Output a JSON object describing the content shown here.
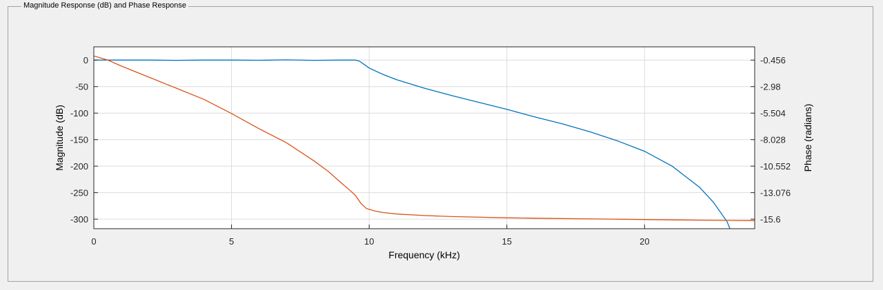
{
  "panel": {
    "title": "Magnitude Response (dB) and Phase Response"
  },
  "chart_data": {
    "type": "line",
    "xlabel": "Frequency (kHz)",
    "ylabel_left": "Magnitude (dB)",
    "ylabel_right": "Phase (radians)",
    "xlim": [
      0,
      24
    ],
    "ylim_left": [
      -318,
      25
    ],
    "ylim_right": [
      -16.8,
      1.2
    ],
    "x_ticks": [
      0,
      5,
      10,
      15,
      20
    ],
    "y_ticks_left": [
      0,
      -50,
      -100,
      -150,
      -200,
      -250,
      -300
    ],
    "y_ticks_right": [
      "-0.456",
      "-2.98",
      "-5.504",
      "-8.028",
      "-10.552",
      "-13.076",
      "-15.6"
    ],
    "grid": true,
    "series": [
      {
        "axis": "left",
        "color": "#0072BD",
        "x": [
          0,
          0.5,
          1,
          2,
          3,
          4,
          5,
          6,
          7,
          8,
          9,
          9.5,
          9.65,
          10,
          10.5,
          11,
          12,
          13,
          14,
          15,
          16,
          17,
          18,
          19,
          20,
          21,
          22,
          22.5,
          23,
          23.1
        ],
        "y": [
          0,
          0,
          0,
          0,
          -0.5,
          0,
          0,
          -0.3,
          0.5,
          -0.5,
          0,
          0,
          -2,
          -15,
          -27,
          -37,
          -53,
          -67,
          -80,
          -93,
          -107,
          -120,
          -135,
          -152,
          -172,
          -200,
          -240,
          -268,
          -305,
          -318
        ]
      },
      {
        "axis": "right",
        "color": "#D95319",
        "x": [
          0,
          0.5,
          1,
          2,
          3,
          4,
          5,
          6,
          7,
          8,
          8.5,
          9,
          9.3,
          9.5,
          9.7,
          9.9,
          10.2,
          10.5,
          11,
          12,
          13,
          15,
          17,
          19,
          21,
          23,
          24
        ],
        "y": [
          0.3,
          -0.1,
          -0.7,
          -1.8,
          -2.9,
          -4.0,
          -5.4,
          -6.9,
          -8.3,
          -10.1,
          -11.1,
          -12.3,
          -13.0,
          -13.5,
          -14.3,
          -14.8,
          -15.05,
          -15.2,
          -15.35,
          -15.5,
          -15.6,
          -15.72,
          -15.8,
          -15.86,
          -15.93,
          -15.98,
          -16.0
        ]
      }
    ]
  }
}
